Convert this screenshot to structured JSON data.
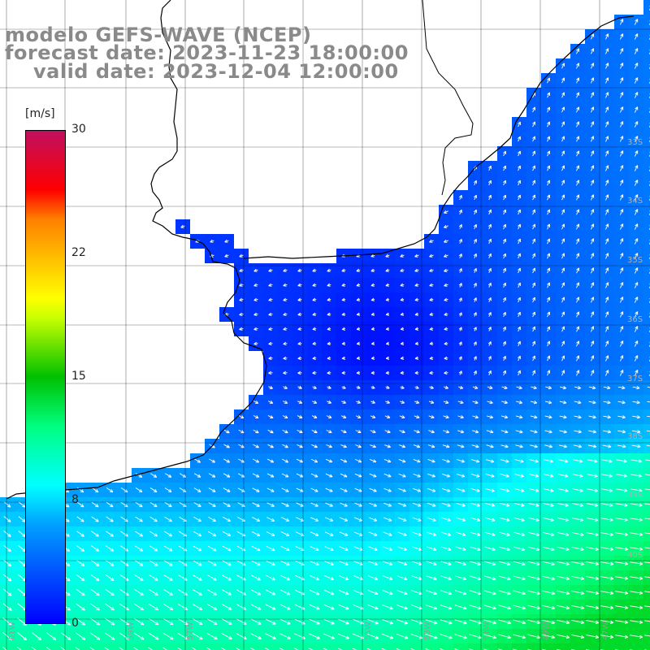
{
  "header": {
    "line1": "modelo GEFS-WAVE (NCEP)",
    "line2": "forecast date: 2023-11-23 18:00:00",
    "line3": "valid date: 2023-12-04 12:00:00"
  },
  "colorbar": {
    "unit": "[m/s]",
    "ticks": [
      "30",
      "22",
      "15",
      "8",
      "0"
    ],
    "tick_values": [
      30,
      22,
      15,
      8,
      0
    ],
    "range": [
      0,
      30
    ],
    "colors": [
      "#0000ff",
      "#00a0ff",
      "#00ffff",
      "#00ff80",
      "#00c000",
      "#c8ff00",
      "#ffff00",
      "#ff8000",
      "#ff0000",
      "#c01060"
    ]
  },
  "map": {
    "land_color": "#ffffff",
    "coast_color": "#000000",
    "grid_color": "#000000",
    "vector_color": "#ffffff",
    "lon_labels": [
      "61W",
      "59W",
      "57W",
      "55W",
      "53W",
      "51W",
      "49W",
      "47W"
    ],
    "lat_labels": [
      "33S",
      "34S",
      "35S",
      "36S",
      "37S",
      "38S",
      "39S",
      "40S"
    ]
  }
}
